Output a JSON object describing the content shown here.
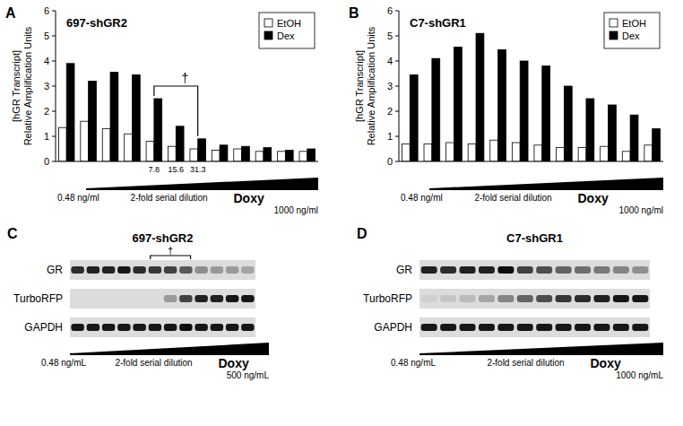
{
  "chart_data": [
    {
      "type": "bar",
      "panel_label": "A",
      "title": "697-shGR2",
      "y_label": [
        "[hGR Transcript]",
        "Relative Amplification Units"
      ],
      "categories": [
        null,
        null,
        null,
        null,
        "7.8",
        "15.6",
        "31.3",
        null,
        null,
        null,
        null,
        null
      ],
      "series": [
        {
          "name": "EtOH",
          "color": "#ffffff",
          "values": [
            1.35,
            1.6,
            1.3,
            1.1,
            0.8,
            0.6,
            0.5,
            0.45,
            0.5,
            0.4,
            0.4,
            0.4
          ]
        },
        {
          "name": "Dex",
          "color": "#000000",
          "values": [
            3.9,
            3.2,
            3.55,
            3.45,
            2.5,
            1.4,
            0.9,
            0.65,
            0.6,
            0.55,
            0.45,
            0.5
          ]
        }
      ],
      "ylim": [
        0,
        6
      ],
      "yticks": [
        0,
        1,
        2,
        3,
        4,
        5,
        6
      ],
      "grid": false,
      "legend": "top-right",
      "bracket": {
        "text": "†",
        "span": [
          4,
          6
        ]
      },
      "dose_axis": {
        "start": "0.48 ng/ml",
        "middle": "2-fold serial dilution",
        "label": "Doxy",
        "end": "1000 ng/ml"
      }
    },
    {
      "type": "bar",
      "panel_label": "B",
      "title": "C7-shGR1",
      "y_label": [
        "[hGR Transcript]",
        "Relative Amplification Units"
      ],
      "categories": [
        null,
        null,
        null,
        null,
        null,
        null,
        null,
        null,
        null,
        null,
        null,
        null
      ],
      "series": [
        {
          "name": "EtOH",
          "color": "#ffffff",
          "values": [
            0.7,
            0.7,
            0.75,
            0.7,
            0.85,
            0.75,
            0.65,
            0.55,
            0.55,
            0.6,
            0.4,
            0.65
          ]
        },
        {
          "name": "Dex",
          "color": "#000000",
          "values": [
            3.45,
            4.1,
            4.55,
            5.1,
            4.45,
            4.0,
            3.8,
            3.0,
            2.5,
            2.25,
            1.85,
            1.3
          ]
        }
      ],
      "ylim": [
        0,
        6
      ],
      "yticks": [
        0,
        1,
        2,
        3,
        4,
        5,
        6
      ],
      "grid": false,
      "legend": "top-right",
      "dose_axis": {
        "start": "0.48 ng/ml",
        "middle": "2-fold serial dilution",
        "label": "Doxy",
        "end": "1000 ng/ml"
      }
    }
  ],
  "blots": [
    {
      "panel_label": "C",
      "title": "697-shGR2",
      "rows": [
        {
          "name": "GR",
          "intensity": [
            0.8,
            0.85,
            0.85,
            0.9,
            0.8,
            0.75,
            0.7,
            0.6,
            0.35,
            0.3,
            0.3,
            0.25
          ]
        },
        {
          "name": "TurboRFP",
          "intensity": [
            0,
            0,
            0,
            0,
            0,
            0,
            0.3,
            0.7,
            0.85,
            0.85,
            0.9,
            0.9
          ]
        },
        {
          "name": "GAPDH",
          "intensity": [
            0.9,
            0.9,
            0.9,
            0.9,
            0.9,
            0.9,
            0.9,
            0.95,
            0.9,
            0.9,
            0.9,
            0.9
          ]
        }
      ],
      "bracket": {
        "text": "†",
        "span": [
          5,
          7
        ]
      },
      "dose_axis": {
        "start": "0.48 ng/mL",
        "middle": "2-fold serial dilution",
        "label": "Doxy",
        "end": "500 ng/mL"
      }
    },
    {
      "panel_label": "D",
      "title": "C7-shGR1",
      "rows": [
        {
          "name": "GR",
          "intensity": [
            0.85,
            0.8,
            0.85,
            0.85,
            0.95,
            0.7,
            0.65,
            0.55,
            0.5,
            0.45,
            0.4,
            0.35
          ]
        },
        {
          "name": "TurboRFP",
          "intensity": [
            0.05,
            0.1,
            0.15,
            0.25,
            0.4,
            0.55,
            0.65,
            0.75,
            0.8,
            0.85,
            0.9,
            0.9
          ]
        },
        {
          "name": "GAPDH",
          "intensity": [
            0.9,
            0.9,
            0.9,
            0.9,
            0.9,
            0.9,
            0.9,
            0.9,
            0.9,
            0.9,
            0.9,
            0.9
          ]
        }
      ],
      "dose_axis": {
        "start": "0.48 ng/mL",
        "middle": "2-fold serial dilution",
        "label": "Doxy",
        "end": "1000 ng/mL"
      }
    }
  ]
}
